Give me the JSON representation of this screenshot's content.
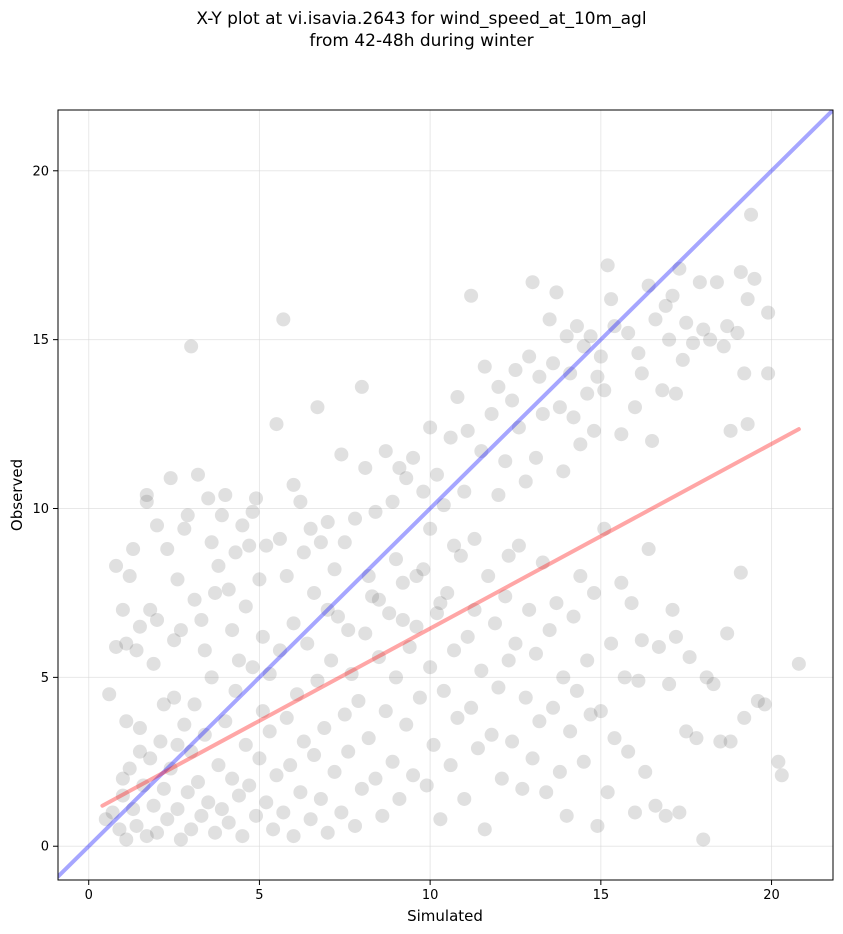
{
  "chart_data": {
    "type": "scatter",
    "title_line1": "X-Y plot at vi.isavia.2643 for wind_speed_at_10m_agl",
    "title_line2": "from 42-48h during winter",
    "xlabel": "Simulated",
    "ylabel": "Observed",
    "xlim": [
      -0.9,
      21.8
    ],
    "ylim": [
      -1.0,
      21.8
    ],
    "xticks": [
      "0",
      "5",
      "10",
      "15",
      "20"
    ],
    "yticks": [
      "0",
      "5",
      "10",
      "15",
      "20"
    ],
    "grid": true,
    "point_color": "#555555",
    "point_alpha": 0.18,
    "identity_line": {
      "color": "#0000ff",
      "alpha": 0.35,
      "x": [
        -0.9,
        21.8
      ],
      "y": [
        -0.9,
        21.8
      ]
    },
    "fit_line": {
      "color": "#ff0000",
      "alpha": 0.35,
      "x": [
        0.4,
        20.8
      ],
      "y": [
        1.2,
        12.35
      ]
    },
    "points": [
      [
        0.5,
        0.8
      ],
      [
        0.6,
        4.5
      ],
      [
        0.8,
        5.9
      ],
      [
        0.8,
        8.3
      ],
      [
        1.0,
        2.0
      ],
      [
        1.0,
        7.0
      ],
      [
        1.1,
        6.0
      ],
      [
        1.1,
        3.7
      ],
      [
        1.2,
        8.0
      ],
      [
        1.3,
        8.8
      ],
      [
        1.4,
        5.8
      ],
      [
        1.5,
        2.8
      ],
      [
        1.5,
        6.5
      ],
      [
        1.7,
        10.4
      ],
      [
        1.7,
        10.2
      ],
      [
        1.8,
        7.0
      ],
      [
        1.9,
        5.4
      ],
      [
        2.0,
        9.5
      ],
      [
        2.0,
        6.7
      ],
      [
        2.2,
        4.2
      ],
      [
        2.3,
        8.8
      ],
      [
        2.4,
        10.9
      ],
      [
        2.5,
        6.1
      ],
      [
        2.6,
        7.9
      ],
      [
        2.6,
        3.0
      ],
      [
        2.7,
        6.4
      ],
      [
        2.8,
        9.4
      ],
      [
        2.9,
        9.8
      ],
      [
        3.0,
        14.8
      ],
      [
        3.1,
        7.3
      ],
      [
        3.2,
        11.0
      ],
      [
        3.3,
        6.7
      ],
      [
        3.4,
        5.8
      ],
      [
        3.5,
        10.3
      ],
      [
        3.6,
        9.0
      ],
      [
        3.7,
        7.5
      ],
      [
        3.8,
        8.3
      ],
      [
        3.9,
        9.8
      ],
      [
        4.0,
        10.4
      ],
      [
        4.1,
        7.6
      ],
      [
        4.2,
        6.4
      ],
      [
        4.3,
        8.7
      ],
      [
        4.4,
        5.5
      ],
      [
        4.5,
        9.5
      ],
      [
        4.6,
        7.1
      ],
      [
        4.7,
        8.9
      ],
      [
        4.8,
        9.9
      ],
      [
        4.9,
        10.3
      ],
      [
        5.0,
        7.9
      ],
      [
        5.1,
        6.2
      ],
      [
        5.2,
        8.9
      ],
      [
        5.3,
        5.1
      ],
      [
        5.5,
        12.5
      ],
      [
        5.6,
        9.1
      ],
      [
        5.7,
        15.6
      ],
      [
        5.8,
        8.0
      ],
      [
        6.0,
        10.7
      ],
      [
        6.0,
        6.6
      ],
      [
        6.2,
        10.2
      ],
      [
        6.3,
        8.7
      ],
      [
        6.5,
        9.4
      ],
      [
        6.6,
        7.5
      ],
      [
        6.7,
        13.0
      ],
      [
        6.8,
        9.0
      ],
      [
        7.0,
        9.6
      ],
      [
        7.0,
        7.0
      ],
      [
        7.2,
        8.2
      ],
      [
        7.4,
        11.6
      ],
      [
        7.5,
        9.0
      ],
      [
        7.6,
        6.4
      ],
      [
        7.8,
        9.7
      ],
      [
        8.0,
        13.6
      ],
      [
        8.1,
        11.2
      ],
      [
        8.2,
        8.0
      ],
      [
        8.4,
        9.9
      ],
      [
        8.5,
        7.3
      ],
      [
        8.7,
        11.7
      ],
      [
        8.9,
        10.2
      ],
      [
        9.0,
        8.5
      ],
      [
        9.1,
        11.2
      ],
      [
        9.2,
        6.7
      ],
      [
        9.3,
        10.9
      ],
      [
        9.5,
        11.5
      ],
      [
        9.6,
        8.0
      ],
      [
        9.8,
        10.5
      ],
      [
        10.0,
        12.4
      ],
      [
        10.0,
        9.4
      ],
      [
        10.2,
        11.0
      ],
      [
        10.3,
        7.2
      ],
      [
        10.4,
        10.1
      ],
      [
        10.6,
        12.1
      ],
      [
        10.7,
        8.9
      ],
      [
        10.8,
        13.3
      ],
      [
        11.0,
        10.5
      ],
      [
        11.1,
        12.3
      ],
      [
        11.2,
        16.3
      ],
      [
        11.3,
        9.1
      ],
      [
        11.5,
        11.7
      ],
      [
        11.6,
        14.2
      ],
      [
        11.8,
        12.8
      ],
      [
        12.0,
        10.4
      ],
      [
        12.0,
        13.6
      ],
      [
        12.2,
        11.4
      ],
      [
        12.3,
        8.6
      ],
      [
        12.4,
        13.2
      ],
      [
        12.5,
        14.1
      ],
      [
        12.6,
        12.4
      ],
      [
        12.8,
        10.8
      ],
      [
        12.9,
        14.5
      ],
      [
        13.0,
        16.7
      ],
      [
        13.1,
        11.5
      ],
      [
        13.2,
        13.9
      ],
      [
        13.3,
        12.8
      ],
      [
        13.5,
        15.6
      ],
      [
        13.6,
        14.3
      ],
      [
        13.7,
        16.4
      ],
      [
        13.8,
        13.0
      ],
      [
        13.9,
        11.1
      ],
      [
        14.0,
        15.1
      ],
      [
        14.1,
        14.0
      ],
      [
        14.2,
        12.7
      ],
      [
        14.3,
        15.4
      ],
      [
        14.4,
        11.9
      ],
      [
        14.5,
        14.8
      ],
      [
        14.6,
        13.4
      ],
      [
        14.7,
        15.1
      ],
      [
        14.8,
        12.3
      ],
      [
        14.9,
        13.9
      ],
      [
        15.0,
        14.5
      ],
      [
        15.1,
        13.5
      ],
      [
        15.2,
        17.2
      ],
      [
        15.3,
        16.2
      ],
      [
        15.4,
        15.4
      ],
      [
        15.6,
        12.2
      ],
      [
        15.8,
        15.2
      ],
      [
        16.0,
        13.0
      ],
      [
        16.1,
        14.6
      ],
      [
        16.2,
        14.0
      ],
      [
        16.4,
        16.6
      ],
      [
        16.5,
        12.0
      ],
      [
        16.6,
        15.6
      ],
      [
        16.8,
        13.5
      ],
      [
        16.9,
        16.0
      ],
      [
        17.0,
        15.0
      ],
      [
        17.1,
        16.3
      ],
      [
        17.2,
        13.4
      ],
      [
        17.3,
        17.1
      ],
      [
        17.4,
        14.4
      ],
      [
        17.5,
        15.5
      ],
      [
        17.7,
        14.9
      ],
      [
        17.9,
        16.7
      ],
      [
        18.0,
        15.3
      ],
      [
        18.2,
        15.0
      ],
      [
        18.4,
        16.7
      ],
      [
        18.6,
        14.8
      ],
      [
        18.7,
        15.4
      ],
      [
        18.8,
        12.3
      ],
      [
        19.0,
        15.2
      ],
      [
        19.1,
        17.0
      ],
      [
        19.2,
        14.0
      ],
      [
        19.3,
        16.2
      ],
      [
        19.4,
        18.7
      ],
      [
        19.5,
        16.8
      ],
      [
        19.9,
        15.8
      ],
      [
        19.9,
        14.0
      ],
      [
        19.3,
        12.5
      ],
      [
        0.7,
        1.0
      ],
      [
        0.9,
        0.5
      ],
      [
        1.0,
        1.5
      ],
      [
        1.1,
        0.2
      ],
      [
        1.2,
        2.3
      ],
      [
        1.3,
        1.1
      ],
      [
        1.4,
        0.6
      ],
      [
        1.5,
        3.5
      ],
      [
        1.6,
        1.8
      ],
      [
        1.7,
        0.3
      ],
      [
        1.8,
        2.6
      ],
      [
        1.9,
        1.2
      ],
      [
        2.0,
        0.4
      ],
      [
        2.1,
        3.1
      ],
      [
        2.2,
        1.7
      ],
      [
        2.3,
        0.8
      ],
      [
        2.4,
        2.3
      ],
      [
        2.5,
        4.4
      ],
      [
        2.6,
        1.1
      ],
      [
        2.7,
        0.2
      ],
      [
        2.8,
        3.6
      ],
      [
        2.9,
        1.6
      ],
      [
        3.0,
        2.8
      ],
      [
        3.0,
        0.5
      ],
      [
        3.1,
        4.2
      ],
      [
        3.2,
        1.9
      ],
      [
        3.3,
        0.9
      ],
      [
        3.4,
        3.3
      ],
      [
        3.5,
        1.3
      ],
      [
        3.6,
        5.0
      ],
      [
        3.7,
        0.4
      ],
      [
        3.8,
        2.4
      ],
      [
        3.9,
        1.1
      ],
      [
        4.0,
        3.7
      ],
      [
        4.1,
        0.7
      ],
      [
        4.2,
        2.0
      ],
      [
        4.3,
        4.6
      ],
      [
        4.4,
        1.5
      ],
      [
        4.5,
        0.3
      ],
      [
        4.6,
        3.0
      ],
      [
        4.7,
        1.8
      ],
      [
        4.8,
        5.3
      ],
      [
        4.9,
        0.9
      ],
      [
        5.0,
        2.6
      ],
      [
        5.1,
        4.0
      ],
      [
        5.2,
        1.3
      ],
      [
        5.3,
        3.4
      ],
      [
        5.4,
        0.5
      ],
      [
        5.5,
        2.1
      ],
      [
        5.6,
        5.8
      ],
      [
        5.7,
        1.0
      ],
      [
        5.8,
        3.8
      ],
      [
        5.9,
        2.4
      ],
      [
        6.0,
        0.3
      ],
      [
        6.1,
        4.5
      ],
      [
        6.2,
        1.6
      ],
      [
        6.3,
        3.1
      ],
      [
        6.4,
        6.0
      ],
      [
        6.5,
        0.8
      ],
      [
        6.6,
        2.7
      ],
      [
        6.7,
        4.9
      ],
      [
        6.8,
        1.4
      ],
      [
        6.9,
        3.5
      ],
      [
        7.0,
        0.4
      ],
      [
        7.1,
        5.5
      ],
      [
        7.2,
        2.2
      ],
      [
        7.3,
        6.8
      ],
      [
        7.4,
        1.0
      ],
      [
        7.5,
        3.9
      ],
      [
        7.6,
        2.8
      ],
      [
        7.7,
        5.1
      ],
      [
        7.8,
        0.6
      ],
      [
        7.9,
        4.3
      ],
      [
        8.0,
        1.7
      ],
      [
        8.1,
        6.3
      ],
      [
        8.2,
        3.2
      ],
      [
        8.3,
        7.4
      ],
      [
        8.4,
        2.0
      ],
      [
        8.5,
        5.6
      ],
      [
        8.6,
        0.9
      ],
      [
        8.7,
        4.0
      ],
      [
        8.8,
        6.9
      ],
      [
        8.9,
        2.5
      ],
      [
        9.0,
        5.0
      ],
      [
        9.1,
        1.4
      ],
      [
        9.2,
        7.8
      ],
      [
        9.3,
        3.6
      ],
      [
        9.4,
        5.9
      ],
      [
        9.5,
        2.1
      ],
      [
        9.6,
        6.5
      ],
      [
        9.7,
        4.4
      ],
      [
        9.8,
        8.2
      ],
      [
        9.9,
        1.8
      ],
      [
        10.0,
        5.3
      ],
      [
        10.1,
        3.0
      ],
      [
        10.2,
        6.9
      ],
      [
        10.3,
        0.8
      ],
      [
        10.4,
        4.6
      ],
      [
        10.5,
        7.5
      ],
      [
        10.6,
        2.4
      ],
      [
        10.7,
        5.8
      ],
      [
        10.8,
        3.8
      ],
      [
        10.9,
        8.6
      ],
      [
        11.0,
        1.4
      ],
      [
        11.1,
        6.2
      ],
      [
        11.2,
        4.1
      ],
      [
        11.3,
        7.0
      ],
      [
        11.4,
        2.9
      ],
      [
        11.5,
        5.2
      ],
      [
        11.6,
        0.5
      ],
      [
        11.7,
        8.0
      ],
      [
        11.8,
        3.3
      ],
      [
        11.9,
        6.6
      ],
      [
        12.0,
        4.7
      ],
      [
        12.1,
        2.0
      ],
      [
        12.2,
        7.4
      ],
      [
        12.3,
        5.5
      ],
      [
        12.4,
        3.1
      ],
      [
        12.5,
        6.0
      ],
      [
        12.6,
        8.9
      ],
      [
        12.7,
        1.7
      ],
      [
        12.8,
        4.4
      ],
      [
        12.9,
        7.0
      ],
      [
        13.0,
        2.6
      ],
      [
        13.1,
        5.7
      ],
      [
        13.2,
        3.7
      ],
      [
        13.3,
        8.4
      ],
      [
        13.4,
        1.6
      ],
      [
        13.5,
        6.4
      ],
      [
        13.6,
        4.1
      ],
      [
        13.7,
        7.2
      ],
      [
        13.8,
        2.2
      ],
      [
        13.9,
        5.0
      ],
      [
        14.0,
        0.9
      ],
      [
        14.1,
        3.4
      ],
      [
        14.2,
        6.8
      ],
      [
        14.3,
        4.6
      ],
      [
        14.4,
        8.0
      ],
      [
        14.5,
        2.5
      ],
      [
        14.6,
        5.5
      ],
      [
        14.7,
        3.9
      ],
      [
        14.8,
        7.5
      ],
      [
        14.9,
        0.6
      ],
      [
        15.0,
        4.0
      ],
      [
        15.1,
        9.4
      ],
      [
        15.2,
        1.6
      ],
      [
        15.3,
        6.0
      ],
      [
        15.4,
        3.2
      ],
      [
        15.6,
        7.8
      ],
      [
        15.7,
        5.0
      ],
      [
        15.8,
        2.8
      ],
      [
        15.9,
        7.2
      ],
      [
        16.0,
        1.0
      ],
      [
        16.1,
        4.9
      ],
      [
        16.2,
        6.1
      ],
      [
        16.3,
        2.2
      ],
      [
        16.4,
        8.8
      ],
      [
        16.6,
        1.2
      ],
      [
        16.7,
        5.9
      ],
      [
        16.9,
        0.9
      ],
      [
        17.0,
        4.8
      ],
      [
        17.1,
        7.0
      ],
      [
        17.2,
        6.2
      ],
      [
        17.3,
        1.0
      ],
      [
        17.5,
        3.4
      ],
      [
        17.6,
        5.6
      ],
      [
        17.8,
        3.2
      ],
      [
        18.0,
        0.2
      ],
      [
        18.1,
        5.0
      ],
      [
        18.3,
        4.8
      ],
      [
        18.5,
        3.1
      ],
      [
        18.7,
        6.3
      ],
      [
        18.8,
        3.1
      ],
      [
        19.1,
        8.1
      ],
      [
        19.2,
        3.8
      ],
      [
        19.6,
        4.3
      ],
      [
        19.8,
        4.2
      ],
      [
        20.2,
        2.5
      ],
      [
        20.3,
        2.1
      ],
      [
        20.8,
        5.4
      ]
    ]
  }
}
